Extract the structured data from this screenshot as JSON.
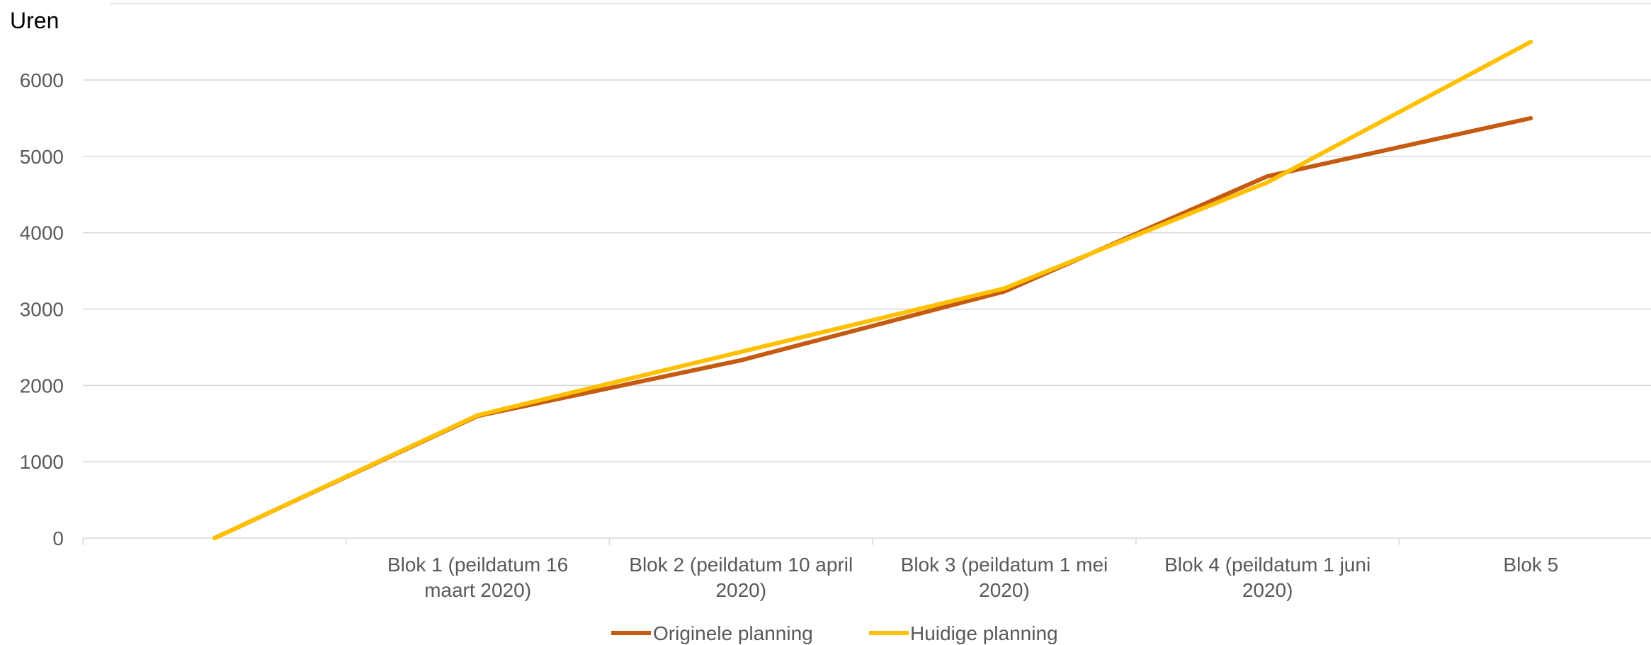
{
  "chart_data": {
    "type": "line",
    "title": "",
    "xlabel": "",
    "ylabel": "Uren",
    "ylim": [
      0,
      7000
    ],
    "yticks": [
      0,
      1000,
      2000,
      3000,
      4000,
      5000,
      6000
    ],
    "grid": true,
    "legend_position": "bottom",
    "categories": [
      "",
      "Blok 1 (peildatum 16 maart 2020)",
      "Blok 2 (peildatum 10 april 2020)",
      "Blok 3 (peildatum 1 mei 2020)",
      "Blok 4 (peildatum 1 juni 2020)",
      "Blok 5"
    ],
    "category_lines": [
      [
        ""
      ],
      [
        "Blok 1 (peildatum 16",
        "maart 2020)"
      ],
      [
        "Blok 2 (peildatum 10 april",
        "2020)"
      ],
      [
        "Blok 3 (peildatum 1 mei",
        "2020)"
      ],
      [
        "Blok 4 (peildatum 1 juni",
        "2020)"
      ],
      [
        "Blok 5"
      ]
    ],
    "series": [
      {
        "name": "Originele planning",
        "color": "#C55A11",
        "values": [
          0,
          1600,
          2330,
          3230,
          4740,
          5500
        ]
      },
      {
        "name": "Huidige planning",
        "color": "#FFC000",
        "values": [
          0,
          1610,
          2440,
          3270,
          4660,
          6500
        ]
      }
    ]
  }
}
